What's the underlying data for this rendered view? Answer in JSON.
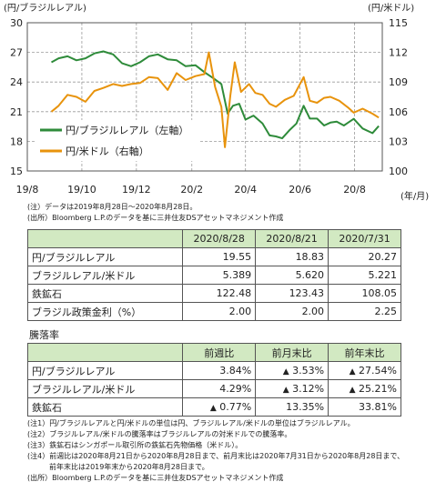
{
  "chart_data": {
    "type": "line",
    "left_axis_label": "(円/ブラジルレアル)",
    "right_axis_label": "(円/米ドル)",
    "x_unit": "(年/月)",
    "left_ylim": [
      15,
      30
    ],
    "left_yticks": [
      "15",
      "18",
      "21",
      "24",
      "27",
      "30"
    ],
    "right_ylim": [
      100,
      115
    ],
    "right_yticks": [
      "100",
      "103",
      "106",
      "109",
      "112",
      "115"
    ],
    "x_ticks": [
      "19/8",
      "19/10",
      "19/12",
      "20/2",
      "20/4",
      "20/6",
      "20/8"
    ],
    "grid": true,
    "legend_position": "lower-left",
    "series": [
      {
        "name": "円/ブラジルレアル（左軸）",
        "axis": "left",
        "color": "#2e8b3a",
        "points": [
          [
            "2019-08-28",
            26.0
          ],
          [
            "2019-09-05",
            26.4
          ],
          [
            "2019-09-15",
            26.6
          ],
          [
            "2019-09-25",
            26.2
          ],
          [
            "2019-10-05",
            26.4
          ],
          [
            "2019-10-15",
            26.9
          ],
          [
            "2019-10-25",
            27.1
          ],
          [
            "2019-11-05",
            26.8
          ],
          [
            "2019-11-15",
            25.9
          ],
          [
            "2019-11-25",
            25.6
          ],
          [
            "2019-12-05",
            26.0
          ],
          [
            "2019-12-15",
            26.6
          ],
          [
            "2019-12-25",
            26.8
          ],
          [
            "2020-01-05",
            26.3
          ],
          [
            "2020-01-15",
            26.2
          ],
          [
            "2020-01-25",
            25.6
          ],
          [
            "2020-02-05",
            25.7
          ],
          [
            "2020-02-15",
            25.0
          ],
          [
            "2020-02-25",
            24.4
          ],
          [
            "2020-03-05",
            23.8
          ],
          [
            "2020-03-12",
            20.8
          ],
          [
            "2020-03-18",
            21.6
          ],
          [
            "2020-03-25",
            21.8
          ],
          [
            "2020-04-01",
            20.2
          ],
          [
            "2020-04-10",
            20.6
          ],
          [
            "2020-04-20",
            19.8
          ],
          [
            "2020-04-28",
            18.6
          ],
          [
            "2020-05-05",
            18.5
          ],
          [
            "2020-05-12",
            18.3
          ],
          [
            "2020-05-20",
            19.1
          ],
          [
            "2020-05-28",
            19.8
          ],
          [
            "2020-06-05",
            21.6
          ],
          [
            "2020-06-12",
            20.3
          ],
          [
            "2020-06-20",
            20.3
          ],
          [
            "2020-06-28",
            19.6
          ],
          [
            "2020-07-05",
            19.9
          ],
          [
            "2020-07-12",
            20.0
          ],
          [
            "2020-07-20",
            19.6
          ],
          [
            "2020-07-31",
            20.27
          ],
          [
            "2020-08-10",
            19.3
          ],
          [
            "2020-08-21",
            18.83
          ],
          [
            "2020-08-28",
            19.55
          ]
        ]
      },
      {
        "name": "円/米ドル（右軸）",
        "axis": "right",
        "color": "#e8930c",
        "points": [
          [
            "2019-08-28",
            106.0
          ],
          [
            "2019-09-05",
            106.6
          ],
          [
            "2019-09-15",
            107.7
          ],
          [
            "2019-09-25",
            107.5
          ],
          [
            "2019-10-05",
            107.0
          ],
          [
            "2019-10-15",
            108.1
          ],
          [
            "2019-10-25",
            108.4
          ],
          [
            "2019-11-05",
            108.8
          ],
          [
            "2019-11-15",
            108.6
          ],
          [
            "2019-11-25",
            108.8
          ],
          [
            "2019-12-05",
            108.9
          ],
          [
            "2019-12-15",
            109.5
          ],
          [
            "2019-12-25",
            109.4
          ],
          [
            "2020-01-05",
            108.2
          ],
          [
            "2020-01-15",
            109.9
          ],
          [
            "2020-01-25",
            109.2
          ],
          [
            "2020-02-05",
            109.6
          ],
          [
            "2020-02-15",
            109.8
          ],
          [
            "2020-02-20",
            112.0
          ],
          [
            "2020-02-27",
            108.5
          ],
          [
            "2020-03-05",
            106.5
          ],
          [
            "2020-03-09",
            102.4
          ],
          [
            "2020-03-15",
            107.6
          ],
          [
            "2020-03-20",
            111.0
          ],
          [
            "2020-03-27",
            108.0
          ],
          [
            "2020-04-05",
            108.8
          ],
          [
            "2020-04-12",
            107.9
          ],
          [
            "2020-04-20",
            107.7
          ],
          [
            "2020-04-28",
            106.8
          ],
          [
            "2020-05-05",
            106.5
          ],
          [
            "2020-05-15",
            107.2
          ],
          [
            "2020-05-25",
            107.6
          ],
          [
            "2020-06-05",
            109.5
          ],
          [
            "2020-06-12",
            107.1
          ],
          [
            "2020-06-20",
            106.9
          ],
          [
            "2020-06-28",
            107.4
          ],
          [
            "2020-07-05",
            107.5
          ],
          [
            "2020-07-15",
            107.1
          ],
          [
            "2020-07-25",
            106.4
          ],
          [
            "2020-07-31",
            105.9
          ],
          [
            "2020-08-10",
            106.3
          ],
          [
            "2020-08-21",
            105.8
          ],
          [
            "2020-08-28",
            105.4
          ]
        ]
      }
    ]
  },
  "notes_top": [
    "(注）データは2019年8月28日～2020年8月28日。",
    "(出所）Bloomberg L.P.のデータを基に三井住友DSアセットマネジメント作成"
  ],
  "table1": {
    "headers": [
      "2020/8/28",
      "2020/8/21",
      "2020/7/31"
    ],
    "rows": [
      {
        "label": "円/ブラジルレアル",
        "values": [
          "19.55",
          "18.83",
          "20.27"
        ]
      },
      {
        "label": "ブラジルレアル/米ドル",
        "values": [
          "5.389",
          "5.620",
          "5.221"
        ]
      },
      {
        "label": "鉄鉱石",
        "values": [
          "122.48",
          "123.43",
          "108.05"
        ]
      },
      {
        "label": "ブラジル政策金利（%）",
        "values": [
          "2.00",
          "2.00",
          "2.25"
        ]
      }
    ]
  },
  "change_label": "騰落率",
  "table2": {
    "headers": [
      "前週比",
      "前月末比",
      "前年末比"
    ],
    "rows": [
      {
        "label": "円/ブラジルレアル",
        "cells": [
          [
            "",
            "3.84%"
          ],
          [
            "▲",
            "3.53%"
          ],
          [
            "▲",
            "27.54%"
          ]
        ]
      },
      {
        "label": "ブラジルレアル/米ドル",
        "cells": [
          [
            "",
            "4.29%"
          ],
          [
            "▲",
            "3.12%"
          ],
          [
            "▲",
            "25.21%"
          ]
        ]
      },
      {
        "label": "鉄鉱石",
        "cells": [
          [
            "▲",
            "0.77%"
          ],
          [
            "",
            "13.35%"
          ],
          [
            "",
            "33.81%"
          ]
        ]
      }
    ]
  },
  "notes_bottom": [
    "(注1）円/ブラジルレアルと円/米ドルの単位は円、ブラジルレアル/米ドルの単位はブラジルレアル。",
    "(注2）ブラジルレアル/米ドルの騰落率はブラジルレアルの対米ドルでの騰落率。",
    "(注3）鉄鉱石はシンガポール取引所の鉄鉱石先物価格（米ドル）。",
    "(注4）前週比は2020年8月21日から2020年8月28日まで、前月末比は2020年7月31日から2020年8月28日まで、",
    "　　　前年末比は2019年末から2020年8月28日まで。",
    "(出所）Bloomberg L.P.のデータを基に三井住友DSアセットマネジメント作成"
  ]
}
